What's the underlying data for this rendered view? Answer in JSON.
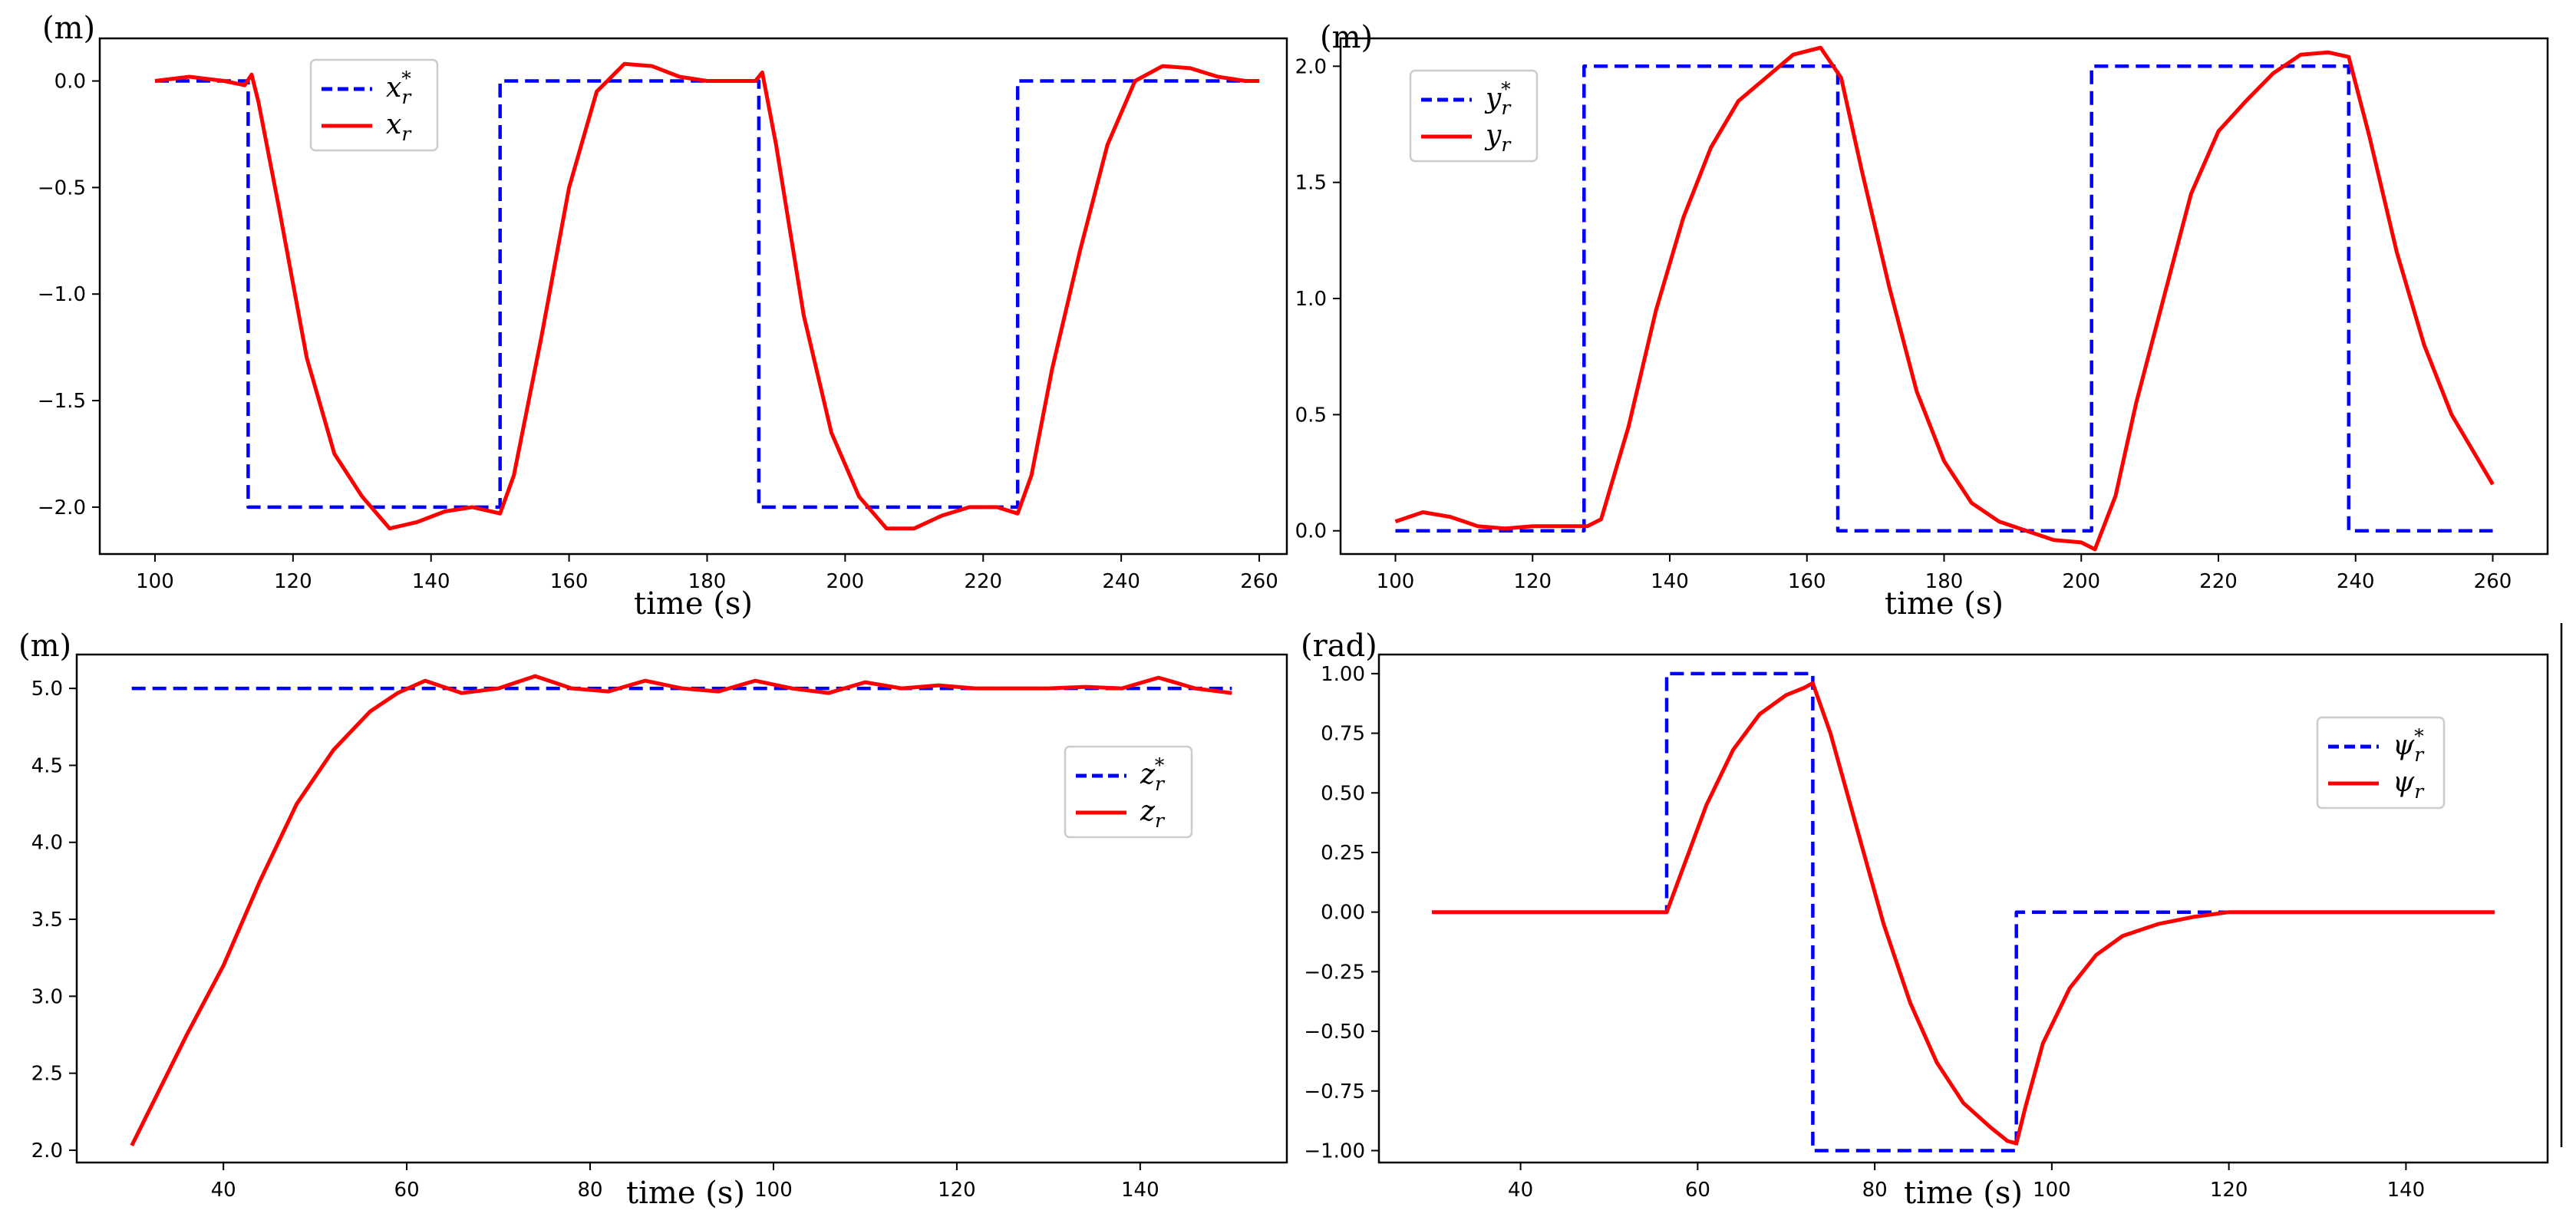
{
  "colors": {
    "reference": "#0000ff",
    "actual": "#ff0000",
    "axis": "#000000",
    "legend_border": "#cccccc"
  },
  "chart_data": [
    {
      "id": "x",
      "type": "line",
      "unit_label": "(m)",
      "xlabel": "time (s)",
      "xlim": [
        92,
        264
      ],
      "ylim": [
        -2.22,
        0.2
      ],
      "xticks": [
        100,
        120,
        140,
        160,
        180,
        200,
        220,
        240,
        260
      ],
      "yticks": [
        0.0,
        -0.5,
        -1.0,
        -1.5,
        -2.0
      ],
      "ytick_labels": [
        "0.0",
        "−0.5",
        "−1.0",
        "−1.5",
        "−2.0"
      ],
      "legend_position": "upper-left",
      "series": [
        {
          "name": "x_r^*",
          "legend_base": "x",
          "legend_sub": "r",
          "legend_sup": "*",
          "style": "dashed",
          "color": "#0000ff",
          "points": [
            [
              100,
              0
            ],
            [
              113.5,
              0
            ],
            [
              113.5,
              -2
            ],
            [
              150,
              -2
            ],
            [
              150,
              0
            ],
            [
              187.5,
              0
            ],
            [
              187.5,
              -2
            ],
            [
              225,
              -2
            ],
            [
              225,
              0
            ],
            [
              260,
              0
            ]
          ]
        },
        {
          "name": "x_r",
          "legend_base": "x",
          "legend_sub": "r",
          "legend_sup": "",
          "style": "solid",
          "color": "#ff0000",
          "points": [
            [
              100,
              0
            ],
            [
              105,
              0.02
            ],
            [
              110,
              0
            ],
            [
              113,
              -0.02
            ],
            [
              114,
              0.03
            ],
            [
              115,
              -0.1
            ],
            [
              118,
              -0.6
            ],
            [
              122,
              -1.3
            ],
            [
              126,
              -1.75
            ],
            [
              130,
              -1.95
            ],
            [
              134,
              -2.1
            ],
            [
              138,
              -2.07
            ],
            [
              142,
              -2.02
            ],
            [
              146,
              -2.0
            ],
            [
              150,
              -2.03
            ],
            [
              152,
              -1.85
            ],
            [
              156,
              -1.2
            ],
            [
              160,
              -0.5
            ],
            [
              164,
              -0.05
            ],
            [
              168,
              0.08
            ],
            [
              172,
              0.07
            ],
            [
              176,
              0.02
            ],
            [
              180,
              0.0
            ],
            [
              184,
              0.0
            ],
            [
              187,
              0.0
            ],
            [
              188,
              0.04
            ],
            [
              190,
              -0.3
            ],
            [
              194,
              -1.1
            ],
            [
              198,
              -1.65
            ],
            [
              202,
              -1.95
            ],
            [
              206,
              -2.1
            ],
            [
              210,
              -2.1
            ],
            [
              214,
              -2.04
            ],
            [
              218,
              -2.0
            ],
            [
              222,
              -2.0
            ],
            [
              225,
              -2.03
            ],
            [
              227,
              -1.85
            ],
            [
              230,
              -1.35
            ],
            [
              234,
              -0.8
            ],
            [
              238,
              -0.3
            ],
            [
              242,
              0.0
            ],
            [
              246,
              0.07
            ],
            [
              250,
              0.06
            ],
            [
              254,
              0.02
            ],
            [
              258,
              0.0
            ],
            [
              260,
              0.0
            ]
          ]
        }
      ]
    },
    {
      "id": "y",
      "type": "line",
      "unit_label": "(m)",
      "xlabel": "time (s)",
      "xlim": [
        92,
        268
      ],
      "ylim": [
        -0.1,
        2.12
      ],
      "xticks": [
        100,
        120,
        140,
        160,
        180,
        200,
        220,
        240,
        260
      ],
      "yticks": [
        0.0,
        0.5,
        1.0,
        1.5,
        2.0
      ],
      "ytick_labels": [
        "0.0",
        "0.5",
        "1.0",
        "1.5",
        "2.0"
      ],
      "legend_position": "upper-left",
      "series": [
        {
          "name": "y_r^*",
          "legend_base": "y",
          "legend_sub": "r",
          "legend_sup": "*",
          "style": "dashed",
          "color": "#0000ff",
          "points": [
            [
              100,
              0
            ],
            [
              127.5,
              0
            ],
            [
              127.5,
              2
            ],
            [
              164.5,
              2
            ],
            [
              164.5,
              0
            ],
            [
              201.5,
              0
            ],
            [
              201.5,
              2
            ],
            [
              239,
              2
            ],
            [
              239,
              0
            ],
            [
              260,
              0
            ]
          ]
        },
        {
          "name": "y_r",
          "legend_base": "y",
          "legend_sub": "r",
          "legend_sup": "",
          "style": "solid",
          "color": "#ff0000",
          "points": [
            [
              100,
              0.04
            ],
            [
              104,
              0.08
            ],
            [
              108,
              0.06
            ],
            [
              112,
              0.02
            ],
            [
              116,
              0.01
            ],
            [
              120,
              0.02
            ],
            [
              124,
              0.02
            ],
            [
              128,
              0.02
            ],
            [
              130,
              0.05
            ],
            [
              134,
              0.45
            ],
            [
              138,
              0.95
            ],
            [
              142,
              1.35
            ],
            [
              146,
              1.65
            ],
            [
              150,
              1.85
            ],
            [
              154,
              1.95
            ],
            [
              158,
              2.05
            ],
            [
              162,
              2.08
            ],
            [
              165,
              1.95
            ],
            [
              168,
              1.55
            ],
            [
              172,
              1.05
            ],
            [
              176,
              0.6
            ],
            [
              180,
              0.3
            ],
            [
              184,
              0.12
            ],
            [
              188,
              0.04
            ],
            [
              192,
              0.0
            ],
            [
              196,
              -0.04
            ],
            [
              200,
              -0.05
            ],
            [
              202,
              -0.08
            ],
            [
              205,
              0.15
            ],
            [
              208,
              0.55
            ],
            [
              212,
              1.0
            ],
            [
              216,
              1.45
            ],
            [
              220,
              1.72
            ],
            [
              224,
              1.85
            ],
            [
              228,
              1.97
            ],
            [
              232,
              2.05
            ],
            [
              236,
              2.06
            ],
            [
              239,
              2.04
            ],
            [
              242,
              1.7
            ],
            [
              246,
              1.2
            ],
            [
              250,
              0.8
            ],
            [
              254,
              0.5
            ],
            [
              258,
              0.3
            ],
            [
              260,
              0.2
            ]
          ]
        }
      ]
    },
    {
      "id": "z",
      "type": "line",
      "unit_label": "(m)",
      "xlabel": "time (s)",
      "xlim": [
        24,
        156
      ],
      "ylim": [
        1.92,
        5.22
      ],
      "xticks": [
        40,
        60,
        80,
        100,
        120,
        140
      ],
      "yticks": [
        2.0,
        2.5,
        3.0,
        3.5,
        4.0,
        4.5,
        5.0
      ],
      "ytick_labels": [
        "2.0",
        "2.5",
        "3.0",
        "3.5",
        "4.0",
        "4.5",
        "5.0"
      ],
      "legend_position": "center-right",
      "series": [
        {
          "name": "z_r^*",
          "legend_base": "z",
          "legend_sub": "r",
          "legend_sup": "*",
          "style": "dashed",
          "color": "#0000ff",
          "points": [
            [
              30,
              5
            ],
            [
              150,
              5
            ]
          ]
        },
        {
          "name": "z_r",
          "legend_base": "z",
          "legend_sub": "r",
          "legend_sup": "",
          "style": "solid",
          "color": "#ff0000",
          "points": [
            [
              30,
              2.03
            ],
            [
              36,
              2.75
            ],
            [
              40,
              3.2
            ],
            [
              44,
              3.75
            ],
            [
              48,
              4.25
            ],
            [
              52,
              4.6
            ],
            [
              56,
              4.85
            ],
            [
              59,
              4.97
            ],
            [
              62,
              5.05
            ],
            [
              66,
              4.97
            ],
            [
              70,
              5.0
            ],
            [
              74,
              5.08
            ],
            [
              78,
              5.0
            ],
            [
              82,
              4.98
            ],
            [
              86,
              5.05
            ],
            [
              90,
              5.0
            ],
            [
              94,
              4.98
            ],
            [
              98,
              5.05
            ],
            [
              102,
              5.0
            ],
            [
              106,
              4.97
            ],
            [
              110,
              5.04
            ],
            [
              114,
              5.0
            ],
            [
              118,
              5.02
            ],
            [
              122,
              5.0
            ],
            [
              126,
              5.0
            ],
            [
              130,
              5.0
            ],
            [
              134,
              5.01
            ],
            [
              138,
              5.0
            ],
            [
              142,
              5.07
            ],
            [
              146,
              5.0
            ],
            [
              150,
              4.97
            ]
          ]
        }
      ]
    },
    {
      "id": "psi",
      "type": "line",
      "unit_label": "(rad)",
      "xlabel": "time (s)",
      "xlim": [
        24,
        156
      ],
      "ylim": [
        -1.05,
        1.08
      ],
      "xticks": [
        40,
        60,
        80,
        100,
        120,
        140
      ],
      "yticks": [
        1.0,
        0.75,
        0.5,
        0.25,
        0.0,
        -0.25,
        -0.5,
        -0.75,
        -1.0
      ],
      "ytick_labels": [
        "1.00",
        "0.75",
        "0.50",
        "0.25",
        "0.00",
        "−0.25",
        "−0.50",
        "−0.75",
        "−1.00"
      ],
      "legend_position": "upper-right",
      "series": [
        {
          "name": "ψ_r^*",
          "legend_base": "ψ",
          "legend_sub": "r",
          "legend_sup": "*",
          "style": "dashed",
          "color": "#0000ff",
          "points": [
            [
              30,
              0
            ],
            [
              56.5,
              0
            ],
            [
              56.5,
              1
            ],
            [
              73,
              1
            ],
            [
              73,
              -1
            ],
            [
              96,
              -1
            ],
            [
              96,
              0
            ],
            [
              150,
              0
            ]
          ]
        },
        {
          "name": "ψ_r",
          "legend_base": "ψ",
          "legend_sub": "r",
          "legend_sup": "",
          "style": "solid",
          "color": "#ff0000",
          "points": [
            [
              30,
              0
            ],
            [
              40,
              0
            ],
            [
              50,
              0
            ],
            [
              56.5,
              0.0
            ],
            [
              58,
              0.15
            ],
            [
              61,
              0.45
            ],
            [
              64,
              0.68
            ],
            [
              67,
              0.83
            ],
            [
              70,
              0.91
            ],
            [
              72,
              0.94
            ],
            [
              73,
              0.96
            ],
            [
              75,
              0.75
            ],
            [
              78,
              0.35
            ],
            [
              81,
              -0.05
            ],
            [
              84,
              -0.38
            ],
            [
              87,
              -0.63
            ],
            [
              90,
              -0.8
            ],
            [
              93,
              -0.9
            ],
            [
              95,
              -0.96
            ],
            [
              96,
              -0.97
            ],
            [
              97,
              -0.82
            ],
            [
              99,
              -0.55
            ],
            [
              102,
              -0.32
            ],
            [
              105,
              -0.18
            ],
            [
              108,
              -0.1
            ],
            [
              112,
              -0.05
            ],
            [
              116,
              -0.02
            ],
            [
              120,
              0.0
            ],
            [
              130,
              0.0
            ],
            [
              140,
              0.0
            ],
            [
              150,
              0.0
            ]
          ]
        }
      ]
    }
  ]
}
